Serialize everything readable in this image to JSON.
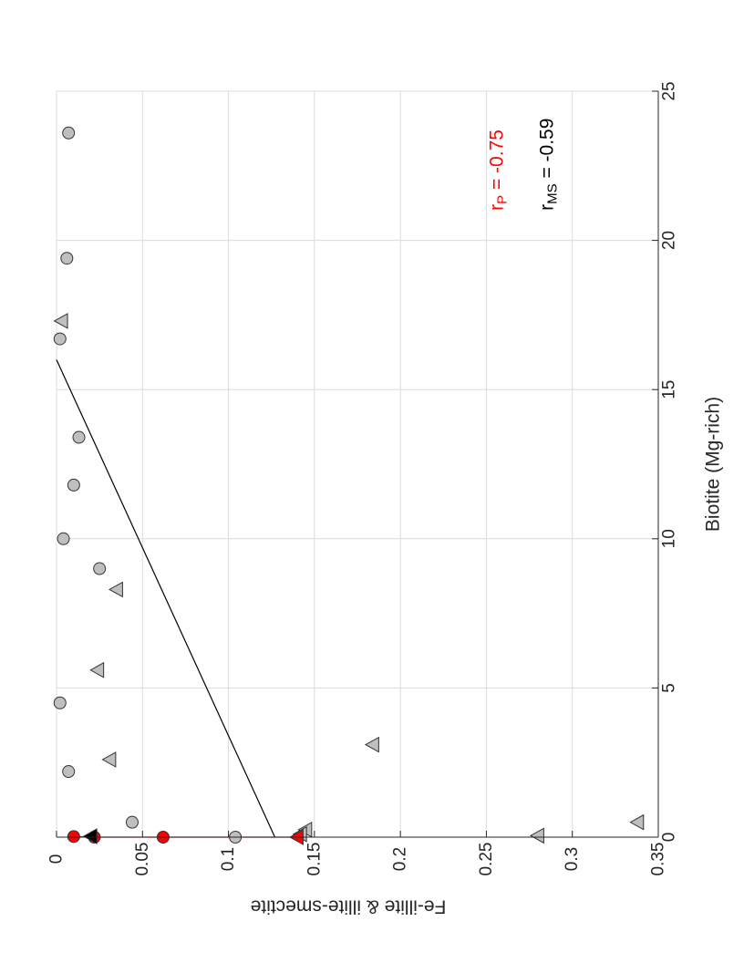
{
  "chart_data": {
    "type": "scatter",
    "orientation": "rotated-90-ccw",
    "xlabel": "Biotite (Mg-rich)",
    "ylabel": "Fe-illite & illite-smectite",
    "xlim": [
      0,
      25
    ],
    "ylim": [
      0,
      0.35
    ],
    "xticks": [
      "0",
      "5",
      "10",
      "15",
      "20",
      "25"
    ],
    "yticks": [
      "0",
      "0.05",
      "0.1",
      "0.15",
      "0.2",
      "0.25",
      "0.3",
      "0.35"
    ],
    "grid": true,
    "series": [
      {
        "marker": "circle",
        "color": "#bfbfbf",
        "points": [
          {
            "x": 0.0,
            "y": 0.104
          },
          {
            "x": 0.5,
            "y": 0.044
          },
          {
            "x": 2.2,
            "y": 0.007
          },
          {
            "x": 4.5,
            "y": 0.002
          },
          {
            "x": 9.0,
            "y": 0.025
          },
          {
            "x": 10.0,
            "y": 0.004
          },
          {
            "x": 11.8,
            "y": 0.01
          },
          {
            "x": 13.4,
            "y": 0.013
          },
          {
            "x": 16.7,
            "y": 0.002
          },
          {
            "x": 19.4,
            "y": 0.006
          },
          {
            "x": 23.6,
            "y": 0.007
          }
        ]
      },
      {
        "marker": "triangle",
        "color": "#bfbfbf",
        "points": [
          {
            "x": 0.5,
            "y": 0.338
          },
          {
            "x": 0.05,
            "y": 0.28
          },
          {
            "x": 3.1,
            "y": 0.184
          },
          {
            "x": 0.25,
            "y": 0.145
          },
          {
            "x": 0.1,
            "y": 0.142
          },
          {
            "x": 2.6,
            "y": 0.031
          },
          {
            "x": 5.6,
            "y": 0.024
          },
          {
            "x": 8.3,
            "y": 0.035
          },
          {
            "x": 17.3,
            "y": 0.003
          }
        ]
      },
      {
        "marker": "circle",
        "color": "#ff0000",
        "points": [
          {
            "x": 0.0,
            "y": 0.062
          },
          {
            "x": 0.0,
            "y": 0.022
          },
          {
            "x": 0.02,
            "y": 0.01
          }
        ]
      },
      {
        "marker": "triangle",
        "color": "#ff0000",
        "points": [
          {
            "x": 0.0,
            "y": 0.14
          }
        ]
      },
      {
        "marker": "triangle",
        "color": "#000000",
        "points": [
          {
            "x": 0.03,
            "y": 0.02
          }
        ]
      }
    ],
    "fits": [
      {
        "color": "#000000",
        "x": [
          0,
          16
        ],
        "y": [
          0.127,
          0
        ]
      },
      {
        "color": "#ff0000",
        "x": [
          0,
          0,
          0.02
        ],
        "y": [
          0.14,
          0.022,
          0.01
        ]
      }
    ],
    "annotations": [
      {
        "text": "r",
        "subscript": "MS",
        "value": " = -0.59",
        "color": "#000000",
        "x": 21.0,
        "y": 0.285
      },
      {
        "text": "r",
        "subscript": "P",
        "value": " = -0.75",
        "color": "#ff0000",
        "x": 21.0,
        "y": 0.256
      }
    ]
  }
}
